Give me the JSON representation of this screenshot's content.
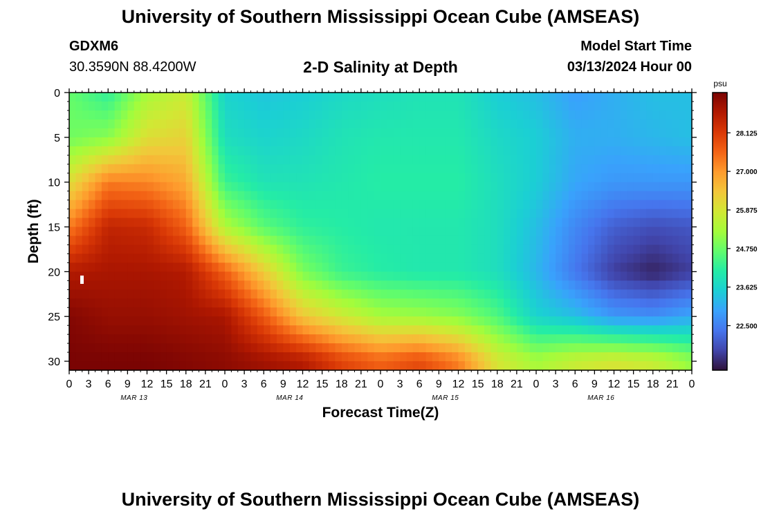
{
  "header": {
    "title": "University of Southern Mississippi Ocean Cube (AMSEAS)",
    "station": "GDXM6",
    "coordinates": "30.3590N  88.4200W",
    "model_start_label": "Model Start Time",
    "model_start_value": "03/13/2024 Hour 00"
  },
  "footer": {
    "title_repeat": "University of Southern Mississippi Ocean Cube (AMSEAS)"
  },
  "chart_data": {
    "type": "heatmap",
    "title": "2-D Salinity at Depth",
    "xlabel": "Forecast Time(Z)",
    "ylabel": "Depth (ft)",
    "x_ticks": [
      "0",
      "3",
      "6",
      "9",
      "12",
      "15",
      "18",
      "21",
      "0",
      "3",
      "6",
      "9",
      "12",
      "15",
      "18",
      "21",
      "0",
      "3",
      "6",
      "9",
      "12",
      "15",
      "18",
      "21",
      "0",
      "3",
      "6",
      "9",
      "12",
      "15",
      "18",
      "21",
      "0"
    ],
    "day_labels": [
      "MAR 13",
      "MAR 14",
      "MAR 15",
      "MAR 16"
    ],
    "y_ticks": [
      0,
      5,
      10,
      15,
      20,
      25,
      30
    ],
    "ylim": [
      0,
      31
    ],
    "xlim_hours": [
      0,
      96
    ],
    "colorbar": {
      "unit": "psu",
      "range": [
        21.2,
        29.3
      ],
      "ticks": [
        "28.125",
        "27.000",
        "25.875",
        "24.750",
        "23.625",
        "22.500"
      ],
      "colors": [
        "#30123b",
        "#4145ab",
        "#4675ed",
        "#39a2fc",
        "#1bcfd4",
        "#24eca6",
        "#61fc6c",
        "#a4fc3b",
        "#d1e834",
        "#f3c63a",
        "#fe9b2d",
        "#f36315",
        "#d93806",
        "#b11901",
        "#7a0403"
      ]
    },
    "control_points": {
      "hours": [
        0,
        6,
        12,
        18,
        24,
        30,
        36,
        42,
        48,
        54,
        60,
        66,
        72,
        78,
        84,
        90,
        96
      ],
      "depths_ft": [
        0,
        5,
        10,
        15,
        20,
        25,
        30
      ],
      "salinity": [
        [
          24.7,
          24.2,
          25.3,
          25.7,
          23.6,
          23.4,
          23.5,
          23.7,
          23.8,
          23.9,
          23.9,
          23.5,
          23.3,
          22.9,
          23.1,
          23.3,
          23.3
        ],
        [
          24.8,
          25.0,
          26.0,
          26.2,
          23.8,
          23.6,
          23.7,
          23.9,
          24.0,
          24.0,
          24.0,
          23.7,
          23.5,
          23.1,
          23.1,
          23.2,
          23.3
        ],
        [
          26.0,
          27.3,
          27.2,
          26.8,
          24.3,
          23.9,
          23.9,
          24.0,
          24.1,
          24.1,
          24.1,
          23.8,
          23.5,
          23.0,
          22.8,
          22.8,
          22.8
        ],
        [
          27.3,
          28.5,
          28.4,
          27.6,
          25.4,
          24.6,
          24.2,
          24.1,
          24.0,
          24.0,
          24.0,
          23.8,
          23.3,
          22.6,
          22.1,
          21.9,
          22.0
        ],
        [
          28.7,
          28.8,
          28.8,
          28.7,
          27.6,
          26.3,
          24.9,
          24.3,
          24.1,
          24.0,
          24.0,
          23.8,
          23.2,
          22.4,
          21.7,
          21.4,
          21.7
        ],
        [
          29.2,
          29.0,
          29.0,
          28.9,
          28.8,
          27.7,
          26.4,
          25.8,
          25.3,
          25.2,
          25.0,
          24.5,
          23.6,
          23.3,
          22.8,
          22.7,
          23.0
        ],
        [
          29.3,
          29.3,
          29.3,
          29.2,
          29.1,
          28.9,
          28.7,
          28.0,
          27.6,
          27.9,
          27.3,
          25.9,
          25.3,
          25.7,
          25.9,
          25.7,
          25.1
        ]
      ]
    }
  }
}
